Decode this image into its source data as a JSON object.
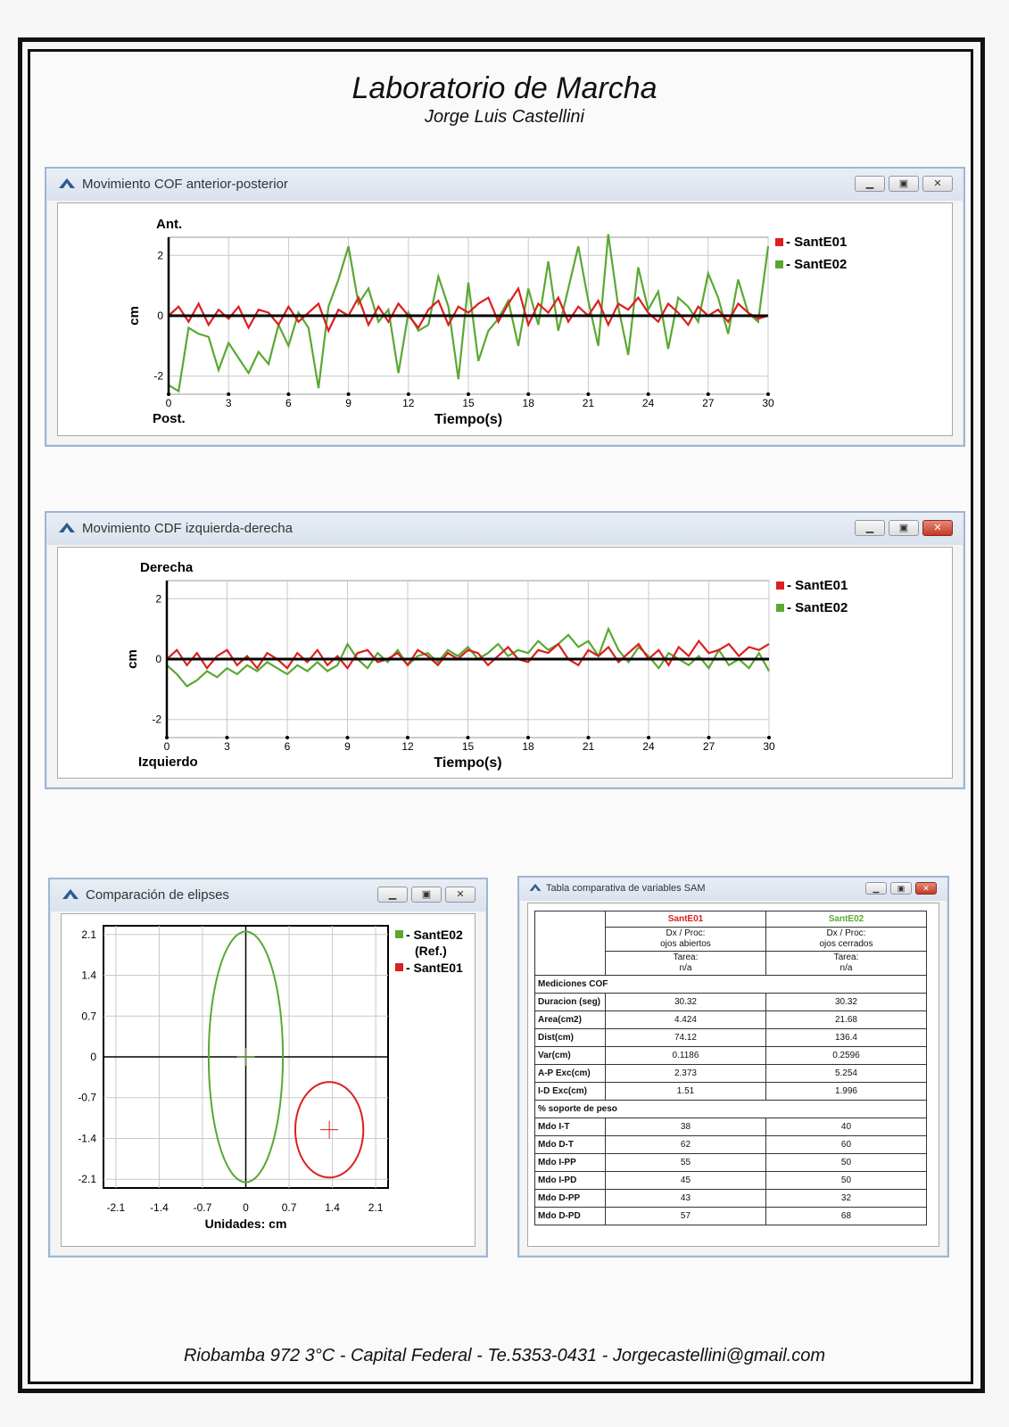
{
  "page": {
    "title": "Laboratorio de Marcha",
    "subtitle": "Jorge Luis Castellini",
    "footer": "Riobamba 972 3°C - Capital Federal - Te.5353-0431 - Jorgecastellini@gmail.com"
  },
  "windows": {
    "ap": {
      "title": "Movimiento COF anterior-posterior",
      "top_label": "Ant.",
      "bottom_label": "Post."
    },
    "ml": {
      "title": "Movimiento CDF izquierda-derecha",
      "top_label": "Derecha",
      "bottom_label": "Izquierdo"
    },
    "ellipse": {
      "title": "Comparación de elipses"
    },
    "table": {
      "title": "Tabla comparativa de variables SAM"
    }
  },
  "colors": {
    "s1": "#dd1f1f",
    "s2": "#5aa832",
    "axis": "#000000",
    "grid": "#c8c8c8"
  },
  "chart_data": [
    {
      "type": "line",
      "xlabel": "Tiempo(s)",
      "ylabel": "cm",
      "xlim": [
        0,
        30
      ],
      "ylim": [
        -2.6,
        2.6
      ],
      "xticks": [
        0,
        3,
        6,
        9,
        12,
        15,
        18,
        21,
        24,
        27,
        30
      ],
      "yticks": [
        -2,
        0,
        2
      ],
      "grid": true,
      "legend": "right",
      "x": [
        0,
        0.5,
        1,
        1.5,
        2,
        2.5,
        3,
        3.5,
        4,
        4.5,
        5,
        5.5,
        6,
        6.5,
        7,
        7.5,
        8,
        8.5,
        9,
        9.5,
        10,
        10.5,
        11,
        11.5,
        12,
        12.5,
        13,
        13.5,
        14,
        14.5,
        15,
        15.5,
        16,
        16.5,
        17,
        17.5,
        18,
        18.5,
        19,
        19.5,
        20,
        20.5,
        21,
        21.5,
        22,
        22.5,
        23,
        23.5,
        24,
        24.5,
        25,
        25.5,
        26,
        26.5,
        27,
        27.5,
        28,
        28.5,
        29,
        29.5,
        30
      ],
      "series": [
        {
          "name": "SantE01",
          "values": [
            0.0,
            0.3,
            -0.2,
            0.4,
            -0.3,
            0.2,
            -0.1,
            0.3,
            -0.4,
            0.2,
            0.1,
            -0.3,
            0.3,
            -0.2,
            0.1,
            0.4,
            -0.5,
            0.2,
            0.0,
            0.6,
            -0.3,
            0.3,
            -0.2,
            0.4,
            0.0,
            -0.4,
            0.2,
            0.5,
            -0.3,
            0.3,
            0.1,
            0.4,
            0.6,
            -0.2,
            0.4,
            0.9,
            -0.3,
            0.4,
            0.1,
            0.6,
            -0.2,
            0.3,
            0.0,
            0.5,
            -0.3,
            0.4,
            0.2,
            0.6,
            0.1,
            -0.2,
            0.4,
            0.1,
            -0.3,
            0.3,
            0.0,
            0.2,
            -0.2,
            0.4,
            0.1,
            -0.1,
            0.0
          ]
        },
        {
          "name": "SantE02",
          "values": [
            -2.3,
            -2.5,
            -0.4,
            -0.6,
            -0.7,
            -1.8,
            -0.9,
            -1.4,
            -1.9,
            -1.2,
            -1.6,
            -0.3,
            -1.0,
            0.1,
            -0.4,
            -2.4,
            0.3,
            1.2,
            2.3,
            0.4,
            0.9,
            -0.2,
            0.2,
            -1.9,
            0.1,
            -0.5,
            -0.3,
            1.3,
            0.3,
            -2.1,
            1.1,
            -1.5,
            -0.5,
            -0.1,
            0.5,
            -1.0,
            0.9,
            -0.3,
            1.8,
            -0.5,
            0.9,
            2.3,
            0.5,
            -1.0,
            2.7,
            0.3,
            -1.3,
            1.6,
            0.2,
            0.8,
            -1.1,
            0.6,
            0.3,
            -0.2,
            1.4,
            0.6,
            -0.6,
            1.2,
            0.1,
            -0.2,
            2.3
          ]
        }
      ]
    },
    {
      "type": "line",
      "xlabel": "Tiempo(s)",
      "ylabel": "cm",
      "xlim": [
        0,
        30
      ],
      "ylim": [
        -2.6,
        2.6
      ],
      "xticks": [
        0,
        3,
        6,
        9,
        12,
        15,
        18,
        21,
        24,
        27,
        30
      ],
      "yticks": [
        -2,
        0,
        2
      ],
      "grid": true,
      "legend": "right",
      "x": [
        0,
        0.5,
        1,
        1.5,
        2,
        2.5,
        3,
        3.5,
        4,
        4.5,
        5,
        5.5,
        6,
        6.5,
        7,
        7.5,
        8,
        8.5,
        9,
        9.5,
        10,
        10.5,
        11,
        11.5,
        12,
        12.5,
        13,
        13.5,
        14,
        14.5,
        15,
        15.5,
        16,
        16.5,
        17,
        17.5,
        18,
        18.5,
        19,
        19.5,
        20,
        20.5,
        21,
        21.5,
        22,
        22.5,
        23,
        23.5,
        24,
        24.5,
        25,
        25.5,
        26,
        26.5,
        27,
        27.5,
        28,
        28.5,
        29,
        29.5,
        30
      ],
      "series": [
        {
          "name": "SantE01",
          "values": [
            0.0,
            0.3,
            -0.2,
            0.2,
            -0.3,
            0.1,
            0.3,
            -0.2,
            0.1,
            -0.3,
            0.2,
            0.0,
            -0.3,
            0.2,
            -0.1,
            0.3,
            -0.2,
            0.1,
            -0.3,
            0.2,
            0.3,
            -0.1,
            0.0,
            0.2,
            -0.2,
            0.3,
            0.1,
            -0.2,
            0.2,
            0.0,
            0.3,
            0.2,
            -0.2,
            0.1,
            0.4,
            0.0,
            -0.1,
            0.3,
            0.2,
            0.5,
            0.0,
            -0.2,
            0.3,
            0.1,
            0.4,
            -0.1,
            0.2,
            0.5,
            0.0,
            0.3,
            -0.2,
            0.4,
            0.1,
            0.6,
            0.2,
            0.3,
            0.5,
            0.1,
            0.4,
            0.3,
            0.5
          ]
        },
        {
          "name": "SantE02",
          "values": [
            -0.2,
            -0.5,
            -0.9,
            -0.7,
            -0.4,
            -0.6,
            -0.3,
            -0.5,
            -0.2,
            -0.4,
            -0.1,
            -0.3,
            -0.5,
            -0.2,
            -0.4,
            -0.1,
            -0.4,
            -0.2,
            0.5,
            0.0,
            -0.3,
            0.2,
            -0.1,
            0.3,
            -0.2,
            0.1,
            0.2,
            -0.1,
            0.3,
            0.1,
            0.4,
            0.0,
            0.2,
            0.5,
            0.1,
            0.3,
            0.2,
            0.6,
            0.3,
            0.5,
            0.8,
            0.4,
            0.6,
            0.1,
            1.0,
            0.3,
            -0.1,
            0.4,
            0.1,
            -0.3,
            0.2,
            0.0,
            -0.2,
            0.1,
            -0.3,
            0.3,
            -0.2,
            0.0,
            -0.3,
            0.2,
            -0.4
          ]
        }
      ]
    },
    {
      "type": "scatter",
      "xlabel": "Unidades: cm",
      "ylabel": "",
      "xlim": [
        -2.3,
        2.3
      ],
      "ylim": [
        -2.25,
        2.25
      ],
      "xticks": [
        -2.1,
        -1.4,
        -0.7,
        0,
        0.7,
        1.4,
        2.1
      ],
      "yticks": [
        2.1,
        1.4,
        0.7,
        0,
        -0.7,
        -1.4,
        -2.1
      ],
      "grid": true,
      "legend": "right",
      "series": [
        {
          "name": "SantE02",
          "legend_text": [
            "- SantE02",
            "(Ref.)"
          ],
          "center": [
            0,
            0
          ],
          "semi_axis_x": 0.6,
          "semi_axis_y": 2.15
        },
        {
          "name": "SantE01",
          "legend_text": [
            "- SantE01"
          ],
          "center": [
            1.35,
            -1.25
          ],
          "semi_axis_x": 0.55,
          "semi_axis_y": 0.82
        }
      ]
    },
    {
      "type": "table",
      "columns": [
        {
          "name": "SantE01",
          "dx_label": "Dx / Proc:",
          "dx_value": "ojos abiertos",
          "task_label": "Tarea:",
          "task_value": "n/a"
        },
        {
          "name": "SantE02",
          "dx_label": "Dx / Proc:",
          "dx_value": "ojos cerrados",
          "task_label": "Tarea:",
          "task_value": "n/a"
        }
      ],
      "sections": [
        {
          "title": "Mediciones COF",
          "rows": [
            {
              "label": "Duracion (seg)",
              "values": [
                "30.32",
                "30.32"
              ]
            },
            {
              "label": "Area(cm2)",
              "values": [
                "4.424",
                "21.68"
              ]
            },
            {
              "label": "Dist(cm)",
              "values": [
                "74.12",
                "136.4"
              ]
            },
            {
              "label": "Var(cm)",
              "values": [
                "0.1186",
                "0.2596"
              ]
            },
            {
              "label": "A-P Exc(cm)",
              "values": [
                "2.373",
                "5.254"
              ]
            },
            {
              "label": "I-D Exc(cm)",
              "values": [
                "1.51",
                "1.996"
              ]
            }
          ]
        },
        {
          "title": "% soporte de peso",
          "rows": [
            {
              "label": "Mdo I-T",
              "values": [
                "38",
                "40"
              ]
            },
            {
              "label": "Mdo D-T",
              "values": [
                "62",
                "60"
              ]
            },
            {
              "label": "Mdo I-PP",
              "values": [
                "55",
                "50"
              ]
            },
            {
              "label": "Mdo I-PD",
              "values": [
                "45",
                "50"
              ]
            },
            {
              "label": "Mdo D-PP",
              "values": [
                "43",
                "32"
              ]
            },
            {
              "label": "Mdo D-PD",
              "values": [
                "57",
                "68"
              ]
            }
          ]
        }
      ]
    }
  ]
}
